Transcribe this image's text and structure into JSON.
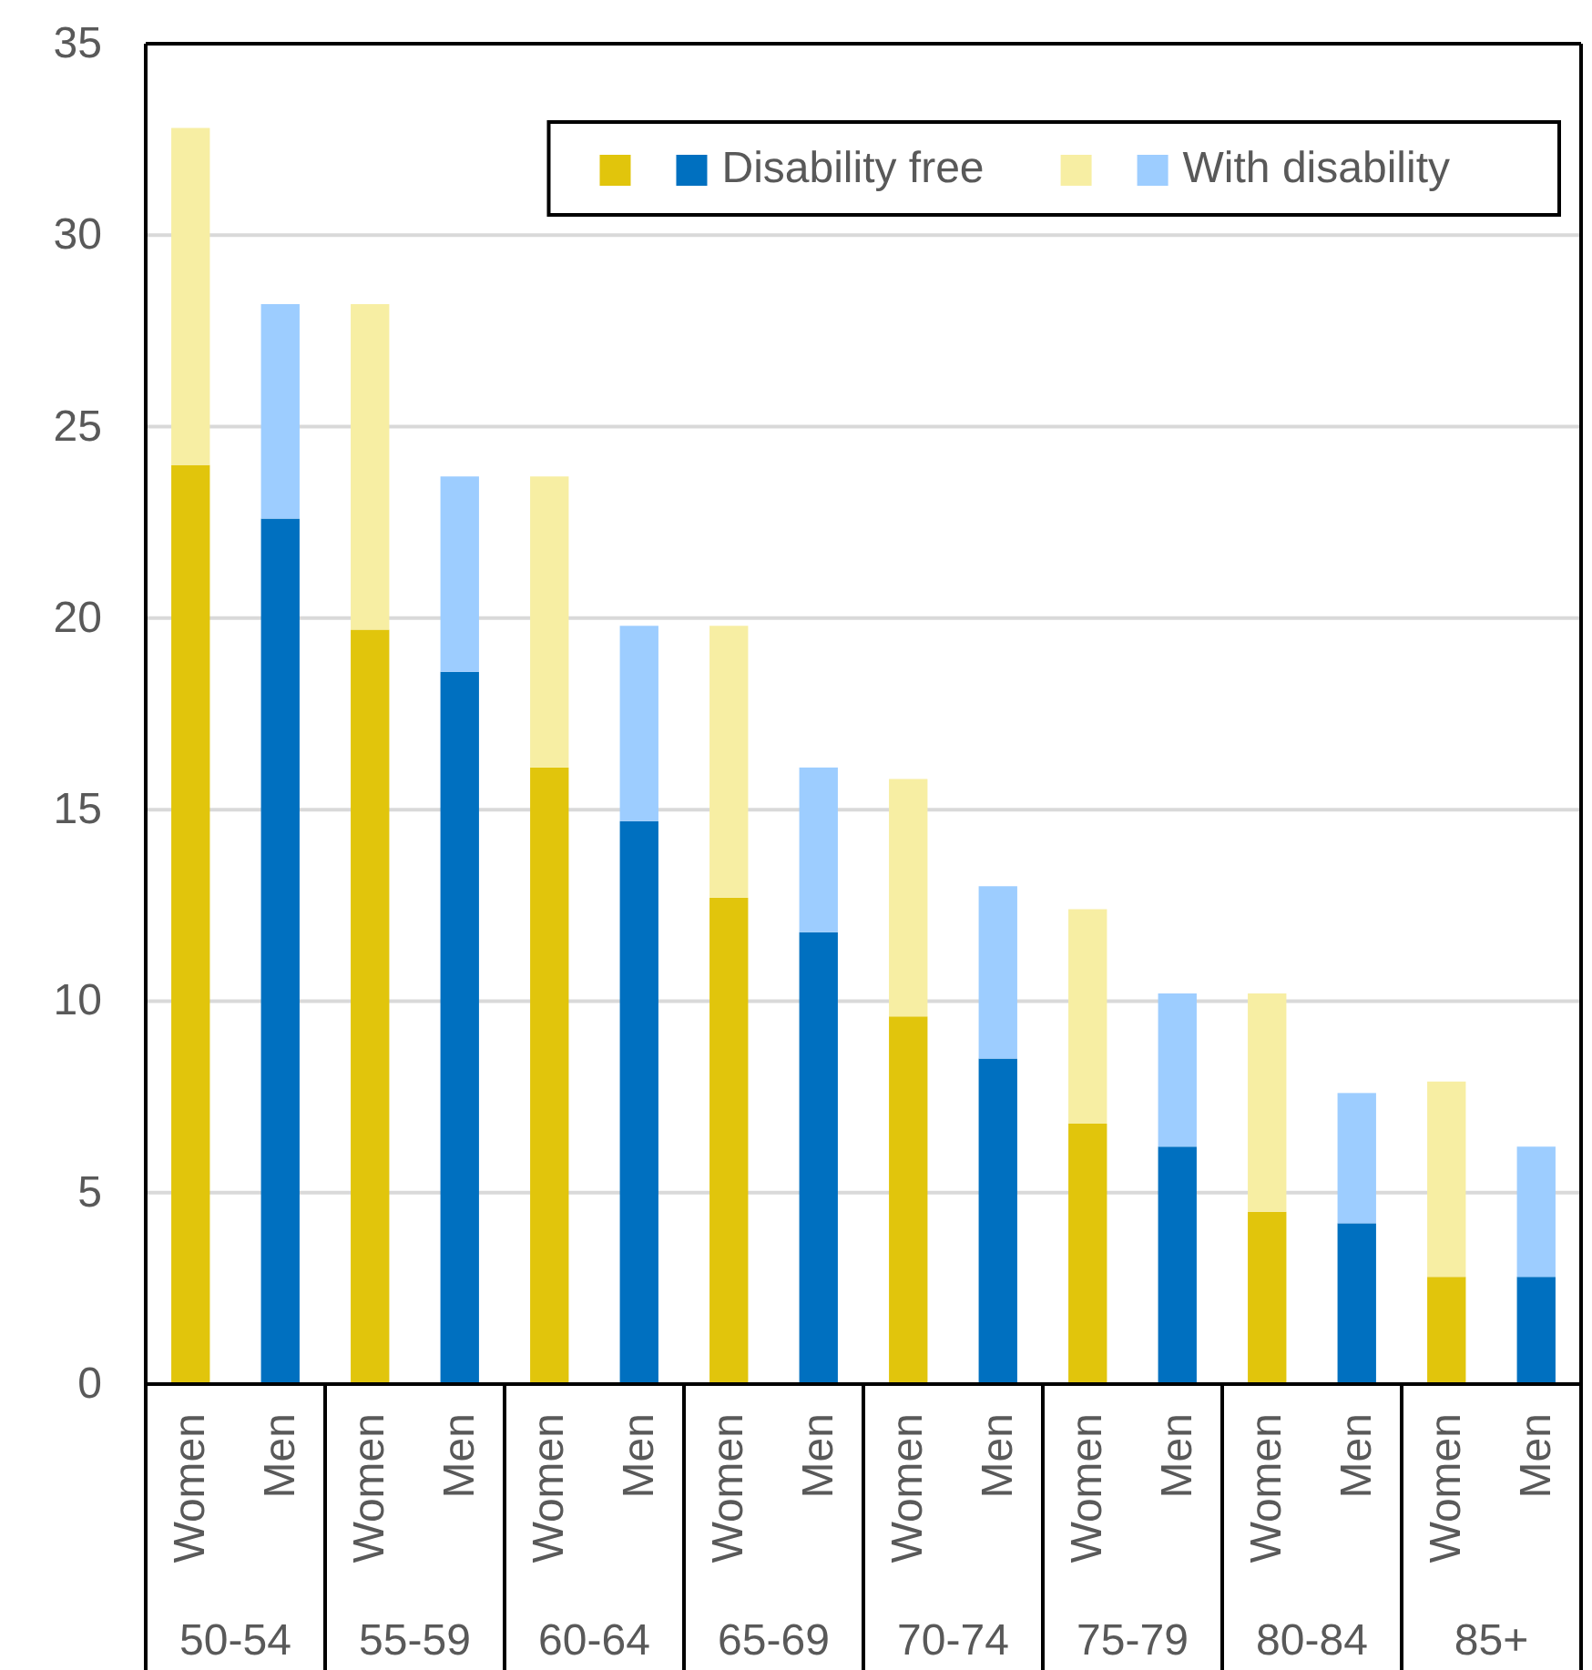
{
  "chart_data": {
    "type": "bar",
    "stacked": true,
    "categories": [
      "Women",
      "Men",
      "Women",
      "Men",
      "Women",
      "Men",
      "Women",
      "Men",
      "Women",
      "Men",
      "Women",
      "Men",
      "Women",
      "Men",
      "Women",
      "Men"
    ],
    "annotations": [
      "50-54",
      "55-59",
      "60-64",
      "65-69",
      "70-74",
      "75-79",
      "80-84",
      "85+"
    ],
    "series": [
      {
        "name": "Disability free",
        "colors": [
          "#e1c50c",
          "#0070c0",
          "#e1c50c",
          "#0070c0",
          "#e1c50c",
          "#0070c0",
          "#e1c50c",
          "#0070c0",
          "#e1c50c",
          "#0070c0",
          "#e1c50c",
          "#0070c0",
          "#e1c50c",
          "#0070c0",
          "#e1c50c",
          "#0070c0"
        ],
        "values": [
          24.0,
          22.6,
          19.7,
          18.6,
          16.1,
          14.7,
          12.7,
          11.8,
          9.6,
          8.5,
          6.8,
          6.2,
          4.5,
          4.2,
          2.8,
          2.8
        ]
      },
      {
        "name": "With disability",
        "colors": [
          "#f7eea3",
          "#9dcdff",
          "#f7eea3",
          "#9dcdff",
          "#f7eea3",
          "#9dcdff",
          "#f7eea3",
          "#9dcdff",
          "#f7eea3",
          "#9dcdff",
          "#f7eea3",
          "#9dcdff",
          "#f7eea3",
          "#9dcdff",
          "#f7eea3",
          "#9dcdff"
        ],
        "values": [
          8.8,
          5.6,
          8.5,
          5.1,
          7.6,
          5.1,
          7.1,
          4.3,
          6.2,
          4.5,
          5.6,
          4.0,
          5.7,
          3.4,
          5.1,
          3.4
        ]
      }
    ],
    "ylim": [
      0,
      35
    ],
    "yticks": [
      0,
      5,
      10,
      15,
      20,
      25,
      30,
      35
    ],
    "grid": "y",
    "legend": "top right"
  }
}
